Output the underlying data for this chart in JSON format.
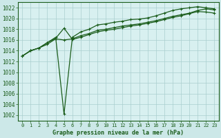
{
  "title": "Graphe pression niveau de la mer (hPa)",
  "bg_color": "#cce8e8",
  "plot_bg_color": "#d8f0f0",
  "grid_color": "#aacece",
  "line_color": "#1a5c1a",
  "xlim": [
    -0.5,
    23.5
  ],
  "ylim": [
    1001.0,
    1023.0
  ],
  "xticks": [
    0,
    1,
    2,
    3,
    4,
    5,
    6,
    7,
    8,
    9,
    10,
    11,
    12,
    13,
    14,
    15,
    16,
    17,
    18,
    19,
    20,
    21,
    22,
    23
  ],
  "yticks": [
    1002,
    1004,
    1006,
    1008,
    1010,
    1012,
    1014,
    1016,
    1018,
    1020,
    1022
  ],
  "line1_x": [
    0,
    1,
    2,
    3,
    4,
    5,
    6,
    7,
    8,
    9,
    10,
    11,
    12,
    13,
    14,
    15,
    16,
    17,
    18,
    19,
    20,
    21,
    22,
    23
  ],
  "line1": [
    1013.0,
    1014.0,
    1014.5,
    1015.2,
    1016.2,
    1016.0,
    1016.2,
    1016.8,
    1017.2,
    1017.8,
    1018.0,
    1018.3,
    1018.6,
    1018.8,
    1019.0,
    1019.3,
    1019.6,
    1020.0,
    1020.4,
    1020.7,
    1021.0,
    1021.5,
    1021.8,
    1021.6
  ],
  "line2_x": [
    0,
    1,
    2,
    3,
    4,
    5,
    6,
    7,
    8,
    9,
    10,
    11,
    12,
    13,
    14,
    15,
    16,
    17,
    18,
    19,
    20,
    21,
    22,
    23
  ],
  "line2": [
    1013.0,
    1014.0,
    1014.5,
    1015.5,
    1016.5,
    1002.2,
    1016.5,
    1017.5,
    1018.0,
    1018.8,
    1019.0,
    1019.3,
    1019.5,
    1019.8,
    1019.9,
    1020.1,
    1020.5,
    1021.0,
    1021.5,
    1021.8,
    1022.0,
    1022.2,
    1022.0,
    1021.8
  ],
  "line3_x": [
    0,
    1,
    2,
    3,
    4,
    5,
    6,
    7,
    8,
    9,
    10,
    11,
    12,
    13,
    14,
    15,
    16,
    17,
    18,
    19,
    20,
    21,
    22,
    23
  ],
  "line3": [
    1013.0,
    1014.0,
    1014.5,
    1015.5,
    1016.3,
    1018.2,
    1016.1,
    1016.5,
    1017.0,
    1017.5,
    1017.8,
    1018.0,
    1018.3,
    1018.6,
    1018.8,
    1019.1,
    1019.4,
    1019.8,
    1020.2,
    1020.5,
    1020.9,
    1021.3,
    1021.2,
    1021.0
  ]
}
